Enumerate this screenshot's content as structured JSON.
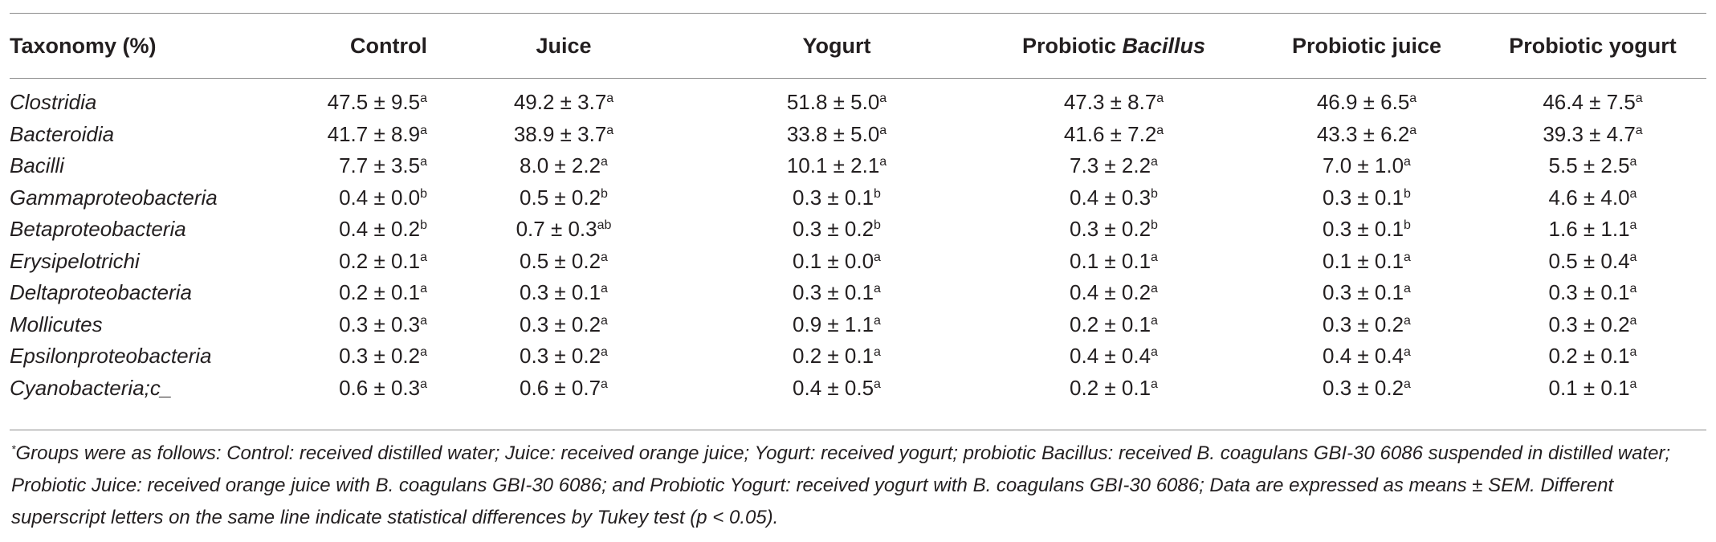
{
  "table": {
    "headers": {
      "taxonomy": "Taxonomy (%)",
      "control": "Control",
      "juice": "Juice",
      "yogurt": "Yogurt",
      "probiotic_bacillus_prefix": "Probiotic ",
      "probiotic_bacillus_italic": "Bacillus",
      "probiotic_juice": "Probiotic juice",
      "probiotic_yogurt": "Probiotic yogurt"
    },
    "rows": [
      {
        "taxon": "Clostridia",
        "cells": [
          {
            "v": "47.5 ± 9.5",
            "s": "a"
          },
          {
            "v": "49.2 ± 3.7",
            "s": "a"
          },
          {
            "v": "51.8 ± 5.0",
            "s": "a"
          },
          {
            "v": "47.3 ± 8.7",
            "s": "a"
          },
          {
            "v": "46.9 ± 6.5",
            "s": "a"
          },
          {
            "v": "46.4 ± 7.5",
            "s": "a"
          }
        ]
      },
      {
        "taxon": "Bacteroidia",
        "cells": [
          {
            "v": "41.7 ± 8.9",
            "s": "a"
          },
          {
            "v": "38.9 ± 3.7",
            "s": "a"
          },
          {
            "v": "33.8 ± 5.0",
            "s": "a"
          },
          {
            "v": "41.6 ± 7.2",
            "s": "a"
          },
          {
            "v": "43.3 ± 6.2",
            "s": "a"
          },
          {
            "v": "39.3 ± 4.7",
            "s": "a"
          }
        ]
      },
      {
        "taxon": "Bacilli",
        "cells": [
          {
            "v": "7.7 ± 3.5",
            "s": "a"
          },
          {
            "v": "8.0 ± 2.2",
            "s": "a"
          },
          {
            "v": "10.1 ± 2.1",
            "s": "a"
          },
          {
            "v": "7.3 ± 2.2",
            "s": "a"
          },
          {
            "v": "7.0 ± 1.0",
            "s": "a"
          },
          {
            "v": "5.5 ± 2.5",
            "s": "a"
          }
        ]
      },
      {
        "taxon": "Gammaproteobacteria",
        "cells": [
          {
            "v": "0.4 ± 0.0",
            "s": "b"
          },
          {
            "v": "0.5 ± 0.2",
            "s": "b"
          },
          {
            "v": "0.3 ± 0.1",
            "s": "b"
          },
          {
            "v": "0.4 ± 0.3",
            "s": "b"
          },
          {
            "v": "0.3 ± 0.1",
            "s": "b"
          },
          {
            "v": "4.6 ± 4.0",
            "s": "a"
          }
        ]
      },
      {
        "taxon": "Betaproteobacteria",
        "cells": [
          {
            "v": "0.4 ± 0.2",
            "s": "b"
          },
          {
            "v": "0.7 ± 0.3",
            "s": "ab"
          },
          {
            "v": "0.3 ± 0.2",
            "s": "b"
          },
          {
            "v": "0.3 ± 0.2",
            "s": "b"
          },
          {
            "v": "0.3 ± 0.1",
            "s": "b"
          },
          {
            "v": "1.6 ± 1.1",
            "s": "a"
          }
        ]
      },
      {
        "taxon": "Erysipelotrichi",
        "cells": [
          {
            "v": "0.2 ± 0.1",
            "s": "a"
          },
          {
            "v": "0.5 ± 0.2",
            "s": "a"
          },
          {
            "v": "0.1 ± 0.0",
            "s": "a"
          },
          {
            "v": "0.1 ± 0.1",
            "s": "a"
          },
          {
            "v": "0.1 ± 0.1",
            "s": "a"
          },
          {
            "v": "0.5 ± 0.4",
            "s": "a"
          }
        ]
      },
      {
        "taxon": "Deltaproteobacteria",
        "cells": [
          {
            "v": "0.2 ± 0.1",
            "s": "a"
          },
          {
            "v": "0.3 ± 0.1",
            "s": "a"
          },
          {
            "v": "0.3 ± 0.1",
            "s": "a"
          },
          {
            "v": "0.4 ± 0.2",
            "s": "a"
          },
          {
            "v": "0.3 ± 0.1",
            "s": "a"
          },
          {
            "v": "0.3 ± 0.1",
            "s": "a"
          }
        ]
      },
      {
        "taxon": "Mollicutes",
        "cells": [
          {
            "v": "0.3 ± 0.3",
            "s": "a"
          },
          {
            "v": "0.3 ± 0.2",
            "s": "a"
          },
          {
            "v": "0.9 ± 1.1",
            "s": "a"
          },
          {
            "v": "0.2 ± 0.1",
            "s": "a"
          },
          {
            "v": "0.3 ± 0.2",
            "s": "a"
          },
          {
            "v": "0.3 ± 0.2",
            "s": "a"
          }
        ]
      },
      {
        "taxon": "Epsilonproteobacteria",
        "cells": [
          {
            "v": "0.3 ± 0.2",
            "s": "a"
          },
          {
            "v": "0.3 ± 0.2",
            "s": "a"
          },
          {
            "v": "0.2 ± 0.1",
            "s": "a"
          },
          {
            "v": "0.4 ± 0.4",
            "s": "a"
          },
          {
            "v": "0.4 ± 0.4",
            "s": "a"
          },
          {
            "v": "0.2 ± 0.1",
            "s": "a"
          }
        ]
      },
      {
        "taxon": "Cyanobacteria;c_",
        "cells": [
          {
            "v": "0.6 ± 0.3",
            "s": "a"
          },
          {
            "v": "0.6 ± 0.7",
            "s": "a"
          },
          {
            "v": "0.4 ± 0.5",
            "s": "a"
          },
          {
            "v": "0.2 ± 0.1",
            "s": "a"
          },
          {
            "v": "0.3 ± 0.2",
            "s": "a"
          },
          {
            "v": "0.1 ± 0.1",
            "s": "a"
          }
        ]
      }
    ]
  },
  "footnote": {
    "marker": "*",
    "text": "Groups were as follows: Control: received distilled water; Juice: received orange juice; Yogurt: received yogurt; probiotic Bacillus: received B. coagulans GBI-30 6086 suspended in distilled water; Probiotic Juice: received orange juice with B. coagulans GBI-30 6086; and Probiotic Yogurt: received yogurt with B. coagulans GBI-30 6086; Data are expressed as means ± SEM. Different superscript letters on the same line indicate statistical differences by Tukey test (p < 0.05)."
  }
}
